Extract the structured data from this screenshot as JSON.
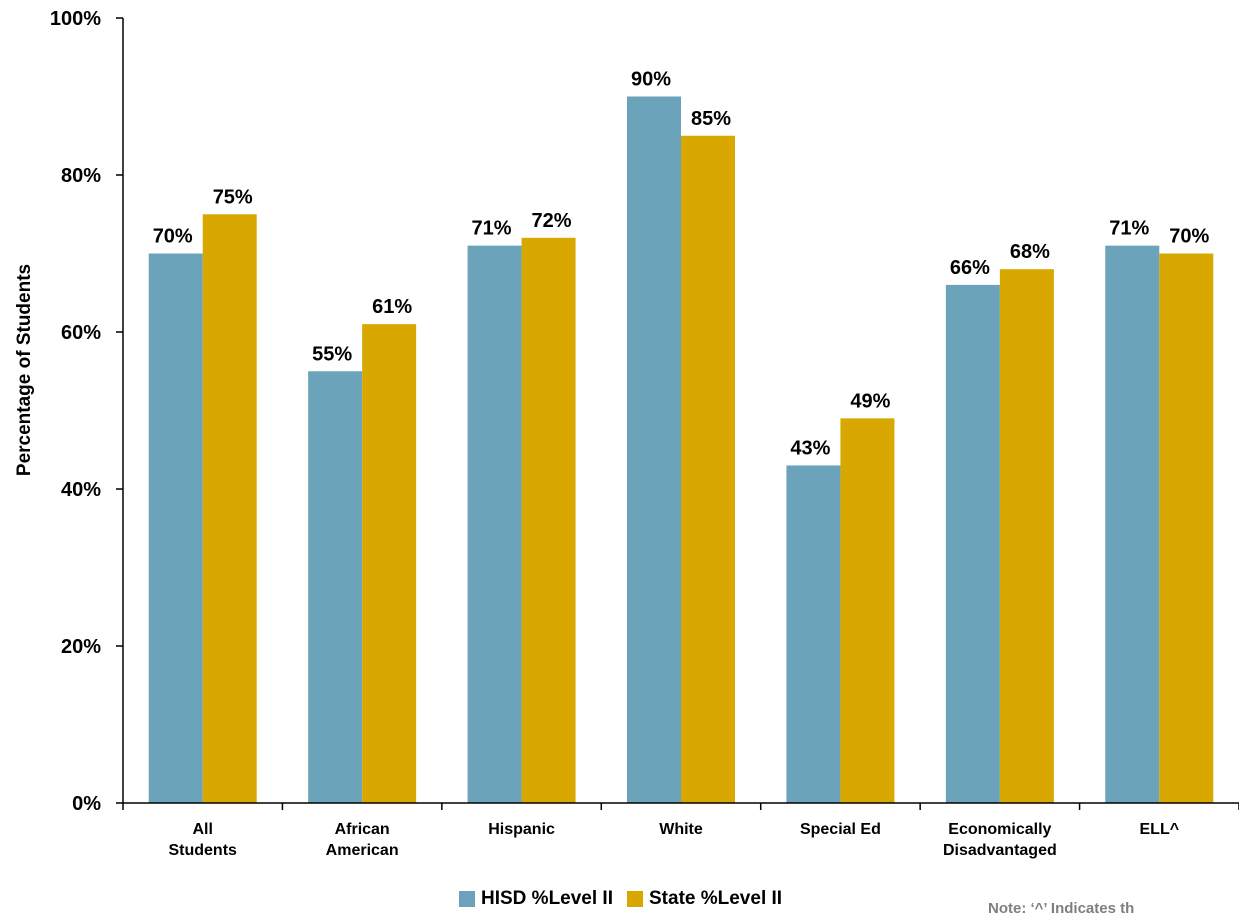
{
  "chart_data": {
    "type": "bar",
    "categories": [
      "All Students",
      "African American",
      "Hispanic",
      "White",
      "Special Ed",
      "Economically Disadvantaged",
      "ELL^"
    ],
    "category_lines": [
      [
        "All",
        "Students"
      ],
      [
        "African",
        "American"
      ],
      [
        "Hispanic"
      ],
      [
        "White"
      ],
      [
        "Special Ed"
      ],
      [
        "Economically",
        "Disadvantaged"
      ],
      [
        "ELL^"
      ]
    ],
    "series": [
      {
        "name": "HISD %Level II",
        "color": "#6aa3ba",
        "values": [
          70,
          55,
          71,
          90,
          43,
          66,
          71
        ],
        "labels": [
          "70%",
          "55%",
          "71%",
          "90%",
          "43%",
          "66%",
          "71%"
        ]
      },
      {
        "name": "State %Level II",
        "color": "#d9a800",
        "values": [
          75,
          61,
          72,
          85,
          49,
          68,
          70
        ],
        "labels": [
          "75%",
          "61%",
          "72%",
          "85%",
          "49%",
          "68%",
          "70%"
        ]
      }
    ],
    "ylabel": "Percentage of Students",
    "ylim": [
      0,
      100
    ],
    "yticks": [
      0,
      20,
      40,
      60,
      80,
      100
    ],
    "ytick_labels": [
      "0%",
      "20%",
      "40%",
      "60%",
      "80%",
      "100%"
    ],
    "grid": false,
    "legend_position": "bottom"
  },
  "note": "Note: ‘^’ Indicates th"
}
